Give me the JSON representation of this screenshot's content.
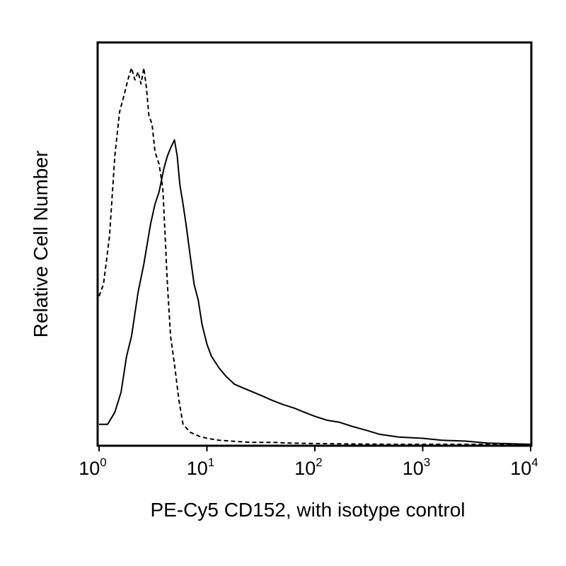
{
  "chart_data": {
    "type": "line",
    "title": "",
    "xlabel": "PE-Cy5 CD152, with isotype control",
    "ylabel": "Relative Cell Number",
    "x_scale": "log",
    "xlim": [
      1,
      10000
    ],
    "ylim": [
      0,
      100
    ],
    "grid": false,
    "x_ticks": [
      {
        "base": "10",
        "exp": "0",
        "value": 1
      },
      {
        "base": "10",
        "exp": "1",
        "value": 10
      },
      {
        "base": "10",
        "exp": "2",
        "value": 100
      },
      {
        "base": "10",
        "exp": "3",
        "value": 1000
      },
      {
        "base": "10",
        "exp": "4",
        "value": 10000
      }
    ],
    "series": [
      {
        "style": "dashed",
        "color": "#000000",
        "x": [
          1.0,
          1.1,
          1.25,
          1.4,
          1.55,
          1.7,
          1.85,
          2.0,
          2.15,
          2.3,
          2.45,
          2.6,
          2.75,
          2.9,
          3.1,
          3.3,
          3.6,
          3.9,
          4.1,
          4.3,
          4.6,
          5.0,
          5.5,
          6.0,
          7.0,
          8.5,
          10,
          13,
          17,
          25,
          40,
          60,
          100,
          200,
          500,
          10000
        ],
        "y": [
          37,
          40,
          52,
          72,
          83,
          87,
          91,
          94,
          91,
          93,
          90,
          94,
          89,
          82,
          80,
          73,
          70,
          64,
          52,
          40,
          27,
          20,
          11,
          5,
          3,
          2,
          1.5,
          1,
          0.8,
          0.5,
          0.5,
          0.3,
          0.2,
          0.1,
          0,
          0
        ]
      },
      {
        "style": "solid",
        "color": "#000000",
        "x": [
          1.0,
          1.2,
          1.4,
          1.6,
          1.8,
          2.0,
          2.3,
          2.6,
          3.0,
          3.3,
          3.6,
          4.0,
          4.3,
          4.6,
          5.0,
          5.3,
          5.6,
          6.0,
          6.4,
          7.0,
          7.6,
          8.3,
          9.0,
          10,
          11,
          13,
          15,
          18,
          22,
          27,
          33,
          40,
          50,
          65,
          80,
          100,
          130,
          170,
          220,
          300,
          400,
          600,
          1000,
          1500,
          2500,
          4000,
          10000
        ],
        "y": [
          5,
          5,
          8,
          13,
          22,
          27,
          38,
          45,
          55,
          60,
          63,
          69,
          72,
          74,
          76,
          72,
          65,
          60,
          55,
          47,
          40,
          36,
          30,
          25,
          22,
          19,
          17,
          15,
          14,
          13,
          12,
          11,
          10,
          9,
          8,
          7,
          6,
          5.5,
          4.5,
          3.5,
          2.5,
          1.8,
          1.5,
          1,
          0.8,
          0.3,
          0
        ]
      }
    ]
  }
}
